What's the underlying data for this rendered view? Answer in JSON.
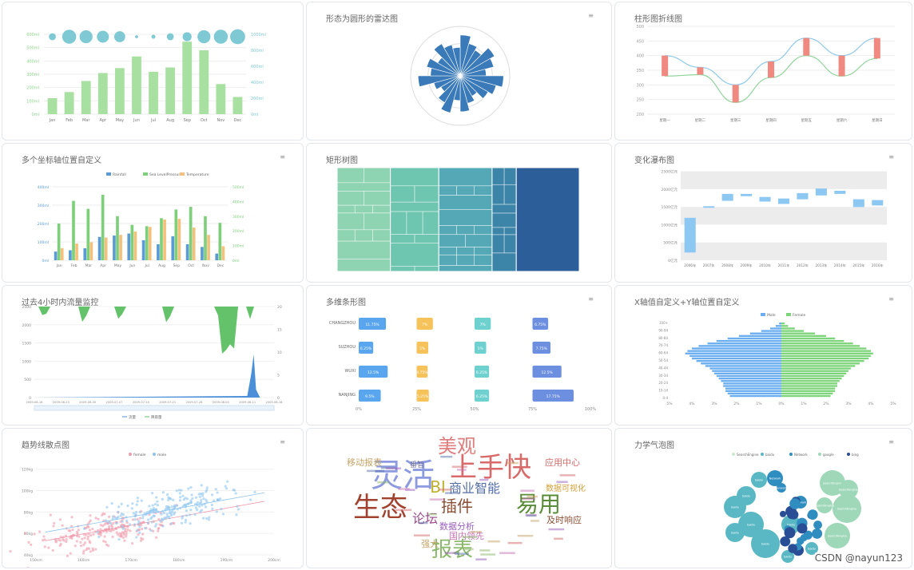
{
  "panels": {
    "p1": {
      "title": ""
    },
    "p2": {
      "title": "形态为圆形的雷达图"
    },
    "p3": {
      "title": "柱形图折线图"
    },
    "p4": {
      "title": "多个坐标轴位置自定义",
      "legend": [
        "Rainfall",
        "Sea LevelPressure",
        "Temperature"
      ]
    },
    "p5": {
      "title": "矩形树图"
    },
    "p6": {
      "title": "变化瀑布图"
    },
    "p7": {
      "title": "过去4小时内流量监控",
      "legend": [
        "流量",
        "降雨量"
      ]
    },
    "p8": {
      "title": "多维条形图"
    },
    "p9": {
      "title": "X轴值自定义+Y轴位置自定义",
      "legend": [
        "Male",
        "Female"
      ]
    },
    "p10": {
      "title": "趋势线散点图",
      "legend": [
        "female",
        "male"
      ]
    },
    "p11": {
      "title": ""
    },
    "p12": {
      "title": "力学气泡图",
      "legend": [
        "SearchEngine",
        "baidu",
        "Network",
        "google",
        "bing"
      ]
    }
  },
  "watermark": "CSDN @nayun123",
  "chart_data": [
    {
      "type": "bar",
      "categories": [
        "Jan",
        "Feb",
        "Mar",
        "Apr",
        "May",
        "Jun",
        "Jul",
        "Aug",
        "Sep",
        "Oct",
        "Nov",
        "Dec"
      ],
      "values": [
        26,
        36,
        54,
        67,
        75,
        94,
        69,
        76,
        118,
        104,
        49,
        28
      ],
      "bubbles": [
        14,
        28,
        26,
        24,
        22,
        6,
        8,
        14,
        18,
        26,
        28,
        30
      ],
      "ylim": [
        0,
        130
      ],
      "y_left_ticks": [
        "0ml",
        "100ml",
        "200ml",
        "300ml",
        "400ml",
        "500ml",
        "600ml"
      ],
      "y_right_ticks": [
        "0ml",
        "200ml",
        "400ml",
        "600ml",
        "800ml",
        "1000ml"
      ],
      "colors": {
        "bar": "#a7e0a0",
        "bubble": "#7ec9d3"
      }
    },
    {
      "type": "bar",
      "subtype": "polar",
      "values": [
        66,
        54,
        48,
        64,
        56,
        42,
        70,
        60,
        52,
        38,
        46,
        58,
        40,
        62,
        50,
        36,
        44,
        68,
        48,
        56,
        42,
        60,
        52,
        46
      ],
      "rmax": 80,
      "color": "#3a7ab8"
    },
    {
      "type": "line",
      "categories": [
        "星期一",
        "星期二",
        "星期三",
        "星期四",
        "星期五",
        "星期六",
        "星期日"
      ],
      "series": [
        {
          "name": "",
          "values": [
            400,
            360,
            300,
            380,
            460,
            400,
            460
          ],
          "color": "#8fc8ea"
        },
        {
          "name": "",
          "values": [
            330,
            335,
            240,
            325,
            400,
            330,
            390
          ],
          "color": "#8fd49a"
        }
      ],
      "bars_low": [
        330,
        335,
        240,
        325,
        400,
        330,
        390
      ],
      "bars_high": [
        400,
        360,
        300,
        380,
        460,
        400,
        460
      ],
      "ylim": [
        200,
        600
      ],
      "y_ticks": [
        "200",
        "250",
        "300",
        "350",
        "400",
        "450",
        "500"
      ],
      "bar_color": "#f08a80"
    },
    {
      "type": "bar",
      "categories": [
        "Jan",
        "Feb",
        "Mar",
        "Apr",
        "May",
        "Jun",
        "Jul",
        "Aug",
        "Sep",
        "Oct",
        "Nov",
        "Dec"
      ],
      "series": [
        {
          "name": "Rainfall",
          "values": [
            26,
            30,
            36,
            70,
            74,
            80,
            60,
            48,
            72,
            48,
            40,
            20
          ],
          "color": "#5b9bd5"
        },
        {
          "name": "Sea LevelPressure",
          "values": [
            110,
            178,
            154,
            196,
            132,
            106,
            102,
            126,
            152,
            160,
            132,
            112
          ],
          "color": "#7ecf7a"
        },
        {
          "name": "Temperature",
          "values": [
            36,
            50,
            54,
            68,
            76,
            86,
            100,
            122,
            124,
            98,
            76,
            42
          ],
          "color": "#f3c17c"
        }
      ],
      "ylim": [
        0,
        220
      ],
      "y_left_ticks": [
        "0ml",
        "100ml",
        "200ml",
        "300ml",
        "400ml"
      ],
      "y_right_ticks": [
        "0ml",
        "100ml",
        "200ml",
        "300ml",
        "400ml",
        "500ml"
      ]
    },
    {
      "type": "heatmap",
      "subtype": "treemap",
      "groups": [
        {
          "name": "",
          "value": 22,
          "color": "#8fd4b2"
        },
        {
          "name": "",
          "value": 20,
          "color": "#6ec6b0"
        },
        {
          "name": "",
          "value": 22,
          "color": "#55a9b6"
        },
        {
          "name": "",
          "value": 10,
          "color": "#3c84a8"
        },
        {
          "name": "",
          "value": 26,
          "color": "#2c5e9a"
        }
      ]
    },
    {
      "type": "bar",
      "subtype": "waterfall",
      "categories": [
        "2006年",
        "2007年",
        "2008年",
        "2009年",
        "2010年",
        "2011年",
        "2012年",
        "2013年",
        "2014年",
        "2015年",
        "2016年"
      ],
      "low": [
        20,
        136,
        154,
        166,
        152,
        146,
        158,
        168,
        172,
        138,
        142
      ],
      "high": [
        110,
        140,
        172,
        172,
        164,
        160,
        174,
        186,
        180,
        158,
        156
      ],
      "ylim": [
        0,
        240
      ],
      "y_ticks": [
        "0亿元",
        "500亿元",
        "1000亿元",
        "1500亿元",
        "2000亿元",
        "2500亿元"
      ],
      "colors": {
        "bar": "#8cc8f2",
        "band": "#ececec"
      }
    },
    {
      "type": "area",
      "x_ticks": [
        "2009-06-16",
        "2009-06-23",
        "2009-06-30",
        "2009-07-07",
        "2009-07-14",
        "2009-07-21",
        "2009-07-28",
        "2009-08-04",
        "2009-08-11",
        "2009-08-18"
      ],
      "y_left_ticks": [
        "0",
        "500",
        "1000",
        "1500",
        "2000",
        "2500"
      ],
      "y_right_ticks": [
        "0",
        "5",
        "10",
        "15",
        "20"
      ],
      "series": [
        {
          "name": "流量",
          "color": "#4a8fd8"
        },
        {
          "name": "降雨量",
          "color": "#64c26a"
        }
      ],
      "flow_peak_at": 0.915,
      "ylim": [
        0,
        2500
      ]
    },
    {
      "type": "bar",
      "subtype": "multi-dimensional",
      "categories": [
        "CHANGZHOU",
        "SUZHOU",
        "WUXI",
        "NANJING"
      ],
      "series": [
        {
          "name": "",
          "values": [
            11.75,
            6.25,
            12.5,
            9.5
          ],
          "labels": [
            "11.75%",
            "6.25%",
            "12.5%",
            "9.5%"
          ],
          "color": "#5aa6ee"
        },
        {
          "name": "",
          "values": [
            7,
            5,
            4.75,
            5.25
          ],
          "labels": [
            "7%",
            "5%",
            "4.75%",
            "5.25%"
          ],
          "color": "#f6c25a"
        },
        {
          "name": "",
          "values": [
            7,
            5,
            6.25,
            6.25
          ],
          "labels": [
            "7%",
            "5%",
            "6.25%",
            "6.25%"
          ],
          "color": "#6ed0cf"
        },
        {
          "name": "",
          "values": [
            6.75,
            7.75,
            12.5,
            17.75
          ],
          "labels": [
            "6.75%",
            "7.75%",
            "12.5%",
            "17.75%"
          ],
          "color": "#6d8fe0"
        }
      ],
      "group_starts": [
        0,
        25,
        50,
        75
      ],
      "x_ticks": [
        "0%",
        "25%",
        "50%",
        "75%",
        "100%"
      ]
    },
    {
      "type": "bar",
      "subtype": "population-pyramid",
      "age_ticks": [
        "0-4",
        "10-14",
        "20-24",
        "30-34",
        "40-44",
        "50-54",
        "60-64",
        "70-74",
        "80-84",
        "90-94",
        "100+"
      ],
      "x_ticks": [
        "5%",
        "4%",
        "3%",
        "2%",
        "1%",
        "0%",
        "1%",
        "2%",
        "3%",
        "4%",
        "5%"
      ],
      "male": [
        2.3,
        2.4,
        2.5,
        2.5,
        2.6,
        2.6,
        2.7,
        2.8,
        2.9,
        3.0,
        3.1,
        3.2,
        3.4,
        3.6,
        3.8,
        4.0,
        4.1,
        4.3,
        4.2,
        4.0,
        3.7,
        3.3,
        2.9,
        2.4,
        1.9,
        1.4,
        0.9,
        0.5,
        0.25,
        0.1
      ],
      "female": [
        2.2,
        2.3,
        2.4,
        2.4,
        2.5,
        2.5,
        2.6,
        2.7,
        2.8,
        2.9,
        3.0,
        3.1,
        3.3,
        3.5,
        3.7,
        3.9,
        4.0,
        4.1,
        4.0,
        3.8,
        3.5,
        3.2,
        2.8,
        2.4,
        2.0,
        1.5,
        1.0,
        0.6,
        0.3,
        0.15
      ],
      "colors": {
        "male": "#6aaef0",
        "female": "#7ed47a"
      }
    },
    {
      "type": "scatter",
      "x_ticks": [
        "150cm",
        "160cm",
        "170cm",
        "180cm",
        "190cm",
        "200cm"
      ],
      "y_ticks": [
        "40kg",
        "60kg",
        "80kg",
        "100kg",
        "120kg"
      ],
      "xlim": [
        150,
        200
      ],
      "ylim": [
        40,
        125
      ],
      "series": [
        {
          "name": "female",
          "color": "#f09aaa",
          "center": [
            163,
            62
          ]
        },
        {
          "name": "male",
          "color": "#8cc4f0",
          "center": [
            178,
            82
          ]
        }
      ]
    },
    {
      "type": "table",
      "subtype": "wordcloud",
      "words": [
        {
          "t": "上手快",
          "s": 34,
          "c": "#d96a6a"
        },
        {
          "t": "灵活",
          "s": 40,
          "c": "#8c9be0"
        },
        {
          "t": "生态",
          "s": 34,
          "c": "#a0422f"
        },
        {
          "t": "易用",
          "s": 28,
          "c": "#5a8c3a"
        },
        {
          "t": "美观",
          "s": 24,
          "c": "#e07c7c"
        },
        {
          "t": "报表",
          "s": 26,
          "c": "#8ab86a"
        },
        {
          "t": "插件",
          "s": 20,
          "c": "#8a4d32"
        },
        {
          "t": "商业智能",
          "s": 16,
          "c": "#556fa8"
        },
        {
          "t": "论坛",
          "s": 16,
          "c": "#9a4a8c"
        },
        {
          "t": "数据分析",
          "s": 11,
          "c": "#9a5fc0"
        },
        {
          "t": "国内领先",
          "s": 11,
          "c": "#c774b8"
        },
        {
          "t": "应用中心",
          "s": 11,
          "c": "#d46a6a"
        },
        {
          "t": "数据可视化",
          "s": 10,
          "c": "#d4a03a"
        },
        {
          "t": "及时响应",
          "s": 11,
          "c": "#8a4d32"
        },
        {
          "t": "移动报表",
          "s": 11,
          "c": "#c7a46a"
        },
        {
          "t": "强大",
          "s": 11,
          "c": "#c7a46a"
        },
        {
          "t": "BI",
          "s": 20,
          "c": "#c0b030"
        },
        {
          "t": "番智",
          "s": 9,
          "c": "#6a6a9a"
        }
      ]
    },
    {
      "type": "scatter",
      "subtype": "force-bubble",
      "series": [
        {
          "name": "SearchEngine",
          "color": "#c7e8cc"
        },
        {
          "name": "baidu",
          "color": "#5ab8c4"
        },
        {
          "name": "Network",
          "color": "#2f8dc0"
        },
        {
          "name": "google",
          "color": "#9fd8b8"
        },
        {
          "name": "bing",
          "color": "#2a4e96"
        }
      ],
      "node_labels": [
        "baidu",
        "bing",
        "google",
        "Network",
        "SearchEngine"
      ]
    }
  ]
}
